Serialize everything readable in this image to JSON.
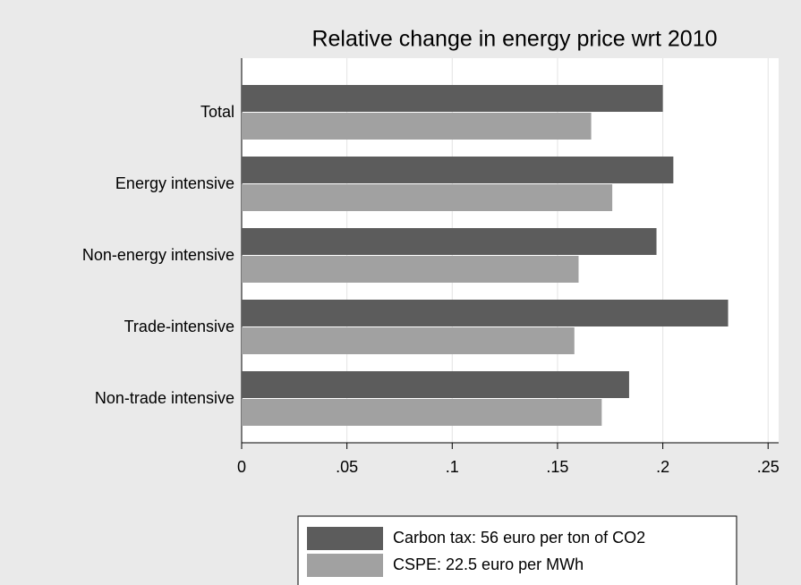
{
  "chart_data": {
    "type": "hbar",
    "title": "Relative change in energy price wrt 2010",
    "categories": [
      "Total",
      "Energy intensive",
      "Non-energy intensive",
      "Trade-intensive",
      "Non-trade intensive"
    ],
    "series": [
      {
        "name": "Carbon tax: 56 euro per ton of CO2",
        "color": "#5c5c5c",
        "values": [
          0.2,
          0.205,
          0.197,
          0.231,
          0.184
        ]
      },
      {
        "name": "CSPE: 22.5 euro per MWh",
        "color": "#a1a1a1",
        "values": [
          0.166,
          0.176,
          0.16,
          0.158,
          0.171
        ]
      }
    ],
    "xlim": [
      0,
      0.255
    ],
    "xticks": [
      0,
      {
        "value": 0.05,
        "label": ".05"
      },
      {
        "value": 0.1,
        "label": ".1"
      },
      {
        "value": 0.15,
        "label": ".15"
      },
      {
        "value": 0.2,
        "label": ".2"
      },
      {
        "value": 0.25,
        "label": ".25"
      }
    ],
    "grid": true,
    "legend": "bottom"
  }
}
